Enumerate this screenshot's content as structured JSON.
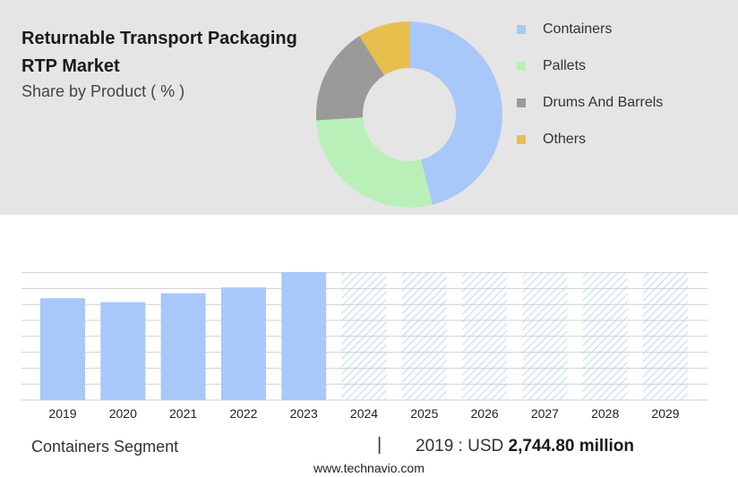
{
  "header": {
    "title": "Returnable Transport Packaging RTP Market",
    "subtitle": "Share by Product ( % )"
  },
  "donut": {
    "type": "pie",
    "segments": [
      {
        "label": "Containers",
        "value": 46,
        "color": "#a8c8fa"
      },
      {
        "label": "Pallets",
        "value": 28,
        "color": "#b8f0b8"
      },
      {
        "label": "Drums And Barrels",
        "value": 17,
        "color": "#9a9a9a"
      },
      {
        "label": "Others",
        "value": 9,
        "color": "#e8bf4c"
      }
    ]
  },
  "chart_data": {
    "type": "bar",
    "categories": [
      "2019",
      "2020",
      "2021",
      "2022",
      "2023",
      "2024",
      "2025",
      "2026",
      "2027",
      "2028",
      "2029"
    ],
    "values": [
      2744.8,
      2640,
      2880,
      3035,
      3450,
      null,
      null,
      null,
      null,
      null,
      null
    ],
    "forecast_from": "2024",
    "bar_color": "#a8c8fa",
    "forecast_pattern_color": "#a8c8fa",
    "ylim": [
      0,
      3450
    ],
    "grid": true
  },
  "footer": {
    "segment_label": "Containers Segment",
    "separator": "|",
    "value_prefix": "2019 : USD",
    "value_amount": "2,744.80 million"
  },
  "source": "www.technavio.com"
}
